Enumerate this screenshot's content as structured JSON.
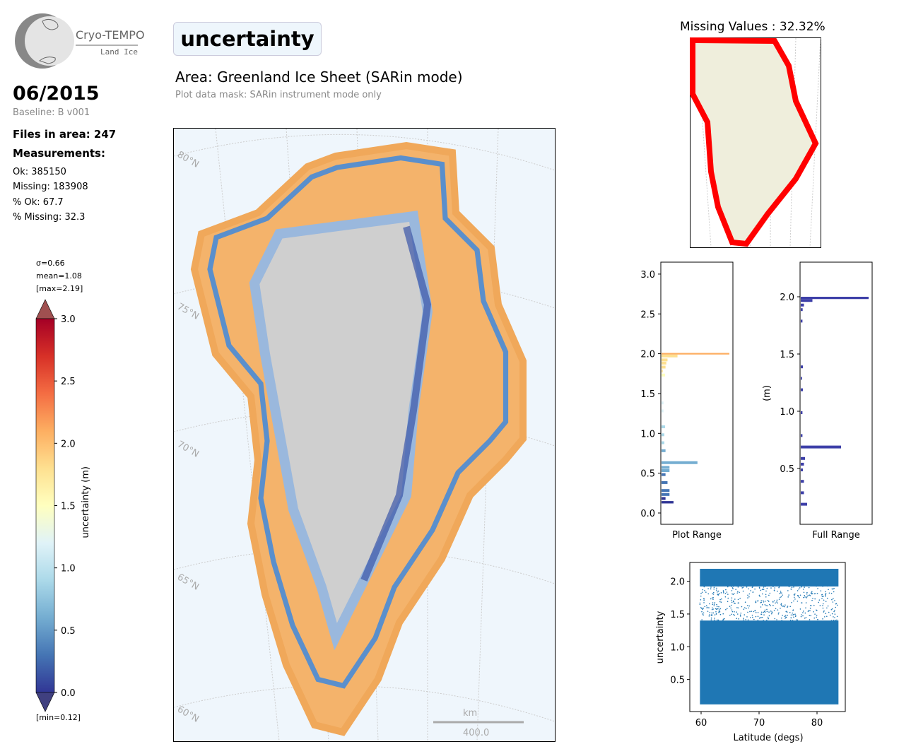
{
  "logo": {
    "name": "Cryo-TEMPO",
    "sub": "Land Ice"
  },
  "header": {
    "title": "uncertainty",
    "area": "Area: Greenland Ice Sheet (SARin mode)",
    "mask": "Plot data mask: SARin instrument mode only"
  },
  "info": {
    "date": "06/2015",
    "baseline": "Baseline: B v001",
    "files": "Files in area: 247",
    "measurements": "Measurements:",
    "ok": "Ok: 385150",
    "missing": "Missing: 183908",
    "pct_ok": "% Ok: 67.7",
    "pct_missing": "% Missing: 32.3"
  },
  "stats": {
    "sigma": "σ=0.66",
    "mean": "mean=1.08",
    "max": "[max=2.19]",
    "min": "[min=0.12]"
  },
  "colorbar": {
    "label": "uncertainty (m)",
    "ticks": [
      "0.0",
      "0.5",
      "1.0",
      "1.5",
      "2.0",
      "2.5",
      "3.0"
    ],
    "colors": [
      "#313695",
      "#4575b4",
      "#74add1",
      "#abd9e9",
      "#e0f3f8",
      "#ffffbf",
      "#fee090",
      "#fdae61",
      "#f46d43",
      "#d73027",
      "#a50026"
    ]
  },
  "map": {
    "lat_labels_left": [
      "80°N",
      "75°N",
      "70°N",
      "65°N",
      "60°N"
    ],
    "lat_labels_right": [
      "75°N",
      "70°N",
      "65°N",
      "60°N"
    ],
    "scale_unit": "km",
    "scale_value": "400.0"
  },
  "missing_map": {
    "title": "Missing Values : 32.32%"
  },
  "chart_data": [
    {
      "type": "bar",
      "name": "Plot Range",
      "orientation": "horizontal",
      "xlabel": "Plot Range",
      "ylim": [
        -0.15,
        3.15
      ],
      "yticks": [
        "0.0",
        "0.5",
        "1.0",
        "1.5",
        "2.0",
        "2.5",
        "3.0"
      ],
      "bins": [
        0.12,
        0.15,
        0.2,
        0.25,
        0.3,
        0.4,
        0.5,
        0.55,
        0.59,
        0.65,
        0.8,
        0.9,
        1.0,
        1.1,
        1.3,
        1.4,
        1.75,
        1.8,
        1.85,
        1.9,
        1.94,
        1.99
      ],
      "counts": [
        3,
        1,
        2,
        2,
        1.5,
        1,
        2,
        2,
        9,
        1,
        0.7,
        0.7,
        0.9,
        0.5,
        0.5,
        0.9,
        0.3,
        1,
        1.2,
        1.5,
        4,
        17
      ]
    },
    {
      "type": "bar",
      "name": "Full Range",
      "orientation": "horizontal",
      "xlabel": "Full Range",
      "ylabel": "(m)",
      "ylim": [
        -0.01,
        2.27
      ],
      "yticks": [
        "0.5",
        "1.0",
        "1.5",
        "2.0"
      ],
      "bins": [
        0.13,
        0.2,
        0.3,
        0.4,
        0.5,
        0.55,
        0.6,
        0.7,
        0.8,
        1.0,
        1.2,
        1.3,
        1.4,
        1.8,
        1.9,
        1.94,
        1.98
      ],
      "counts": [
        3,
        1.5,
        1.5,
        1,
        1.5,
        2,
        19,
        0.8,
        0.8,
        1,
        0.6,
        1,
        0.8,
        0.9,
        1.5,
        5.5,
        32
      ]
    },
    {
      "type": "scatter",
      "name": "uncertainty vs latitude",
      "xlabel": "Latitude (degs)",
      "ylabel": "uncertainty",
      "xlim": [
        58.5,
        85.5
      ],
      "ylim": [
        0.0,
        2.28
      ],
      "xticks": [
        "60",
        "70",
        "80"
      ],
      "yticks": [
        "0.5",
        "1.0",
        "1.5",
        "2.0"
      ],
      "x_range": [
        59.8,
        83.7
      ],
      "y_range": [
        0.12,
        2.19
      ],
      "color": "#1f77b4"
    }
  ]
}
